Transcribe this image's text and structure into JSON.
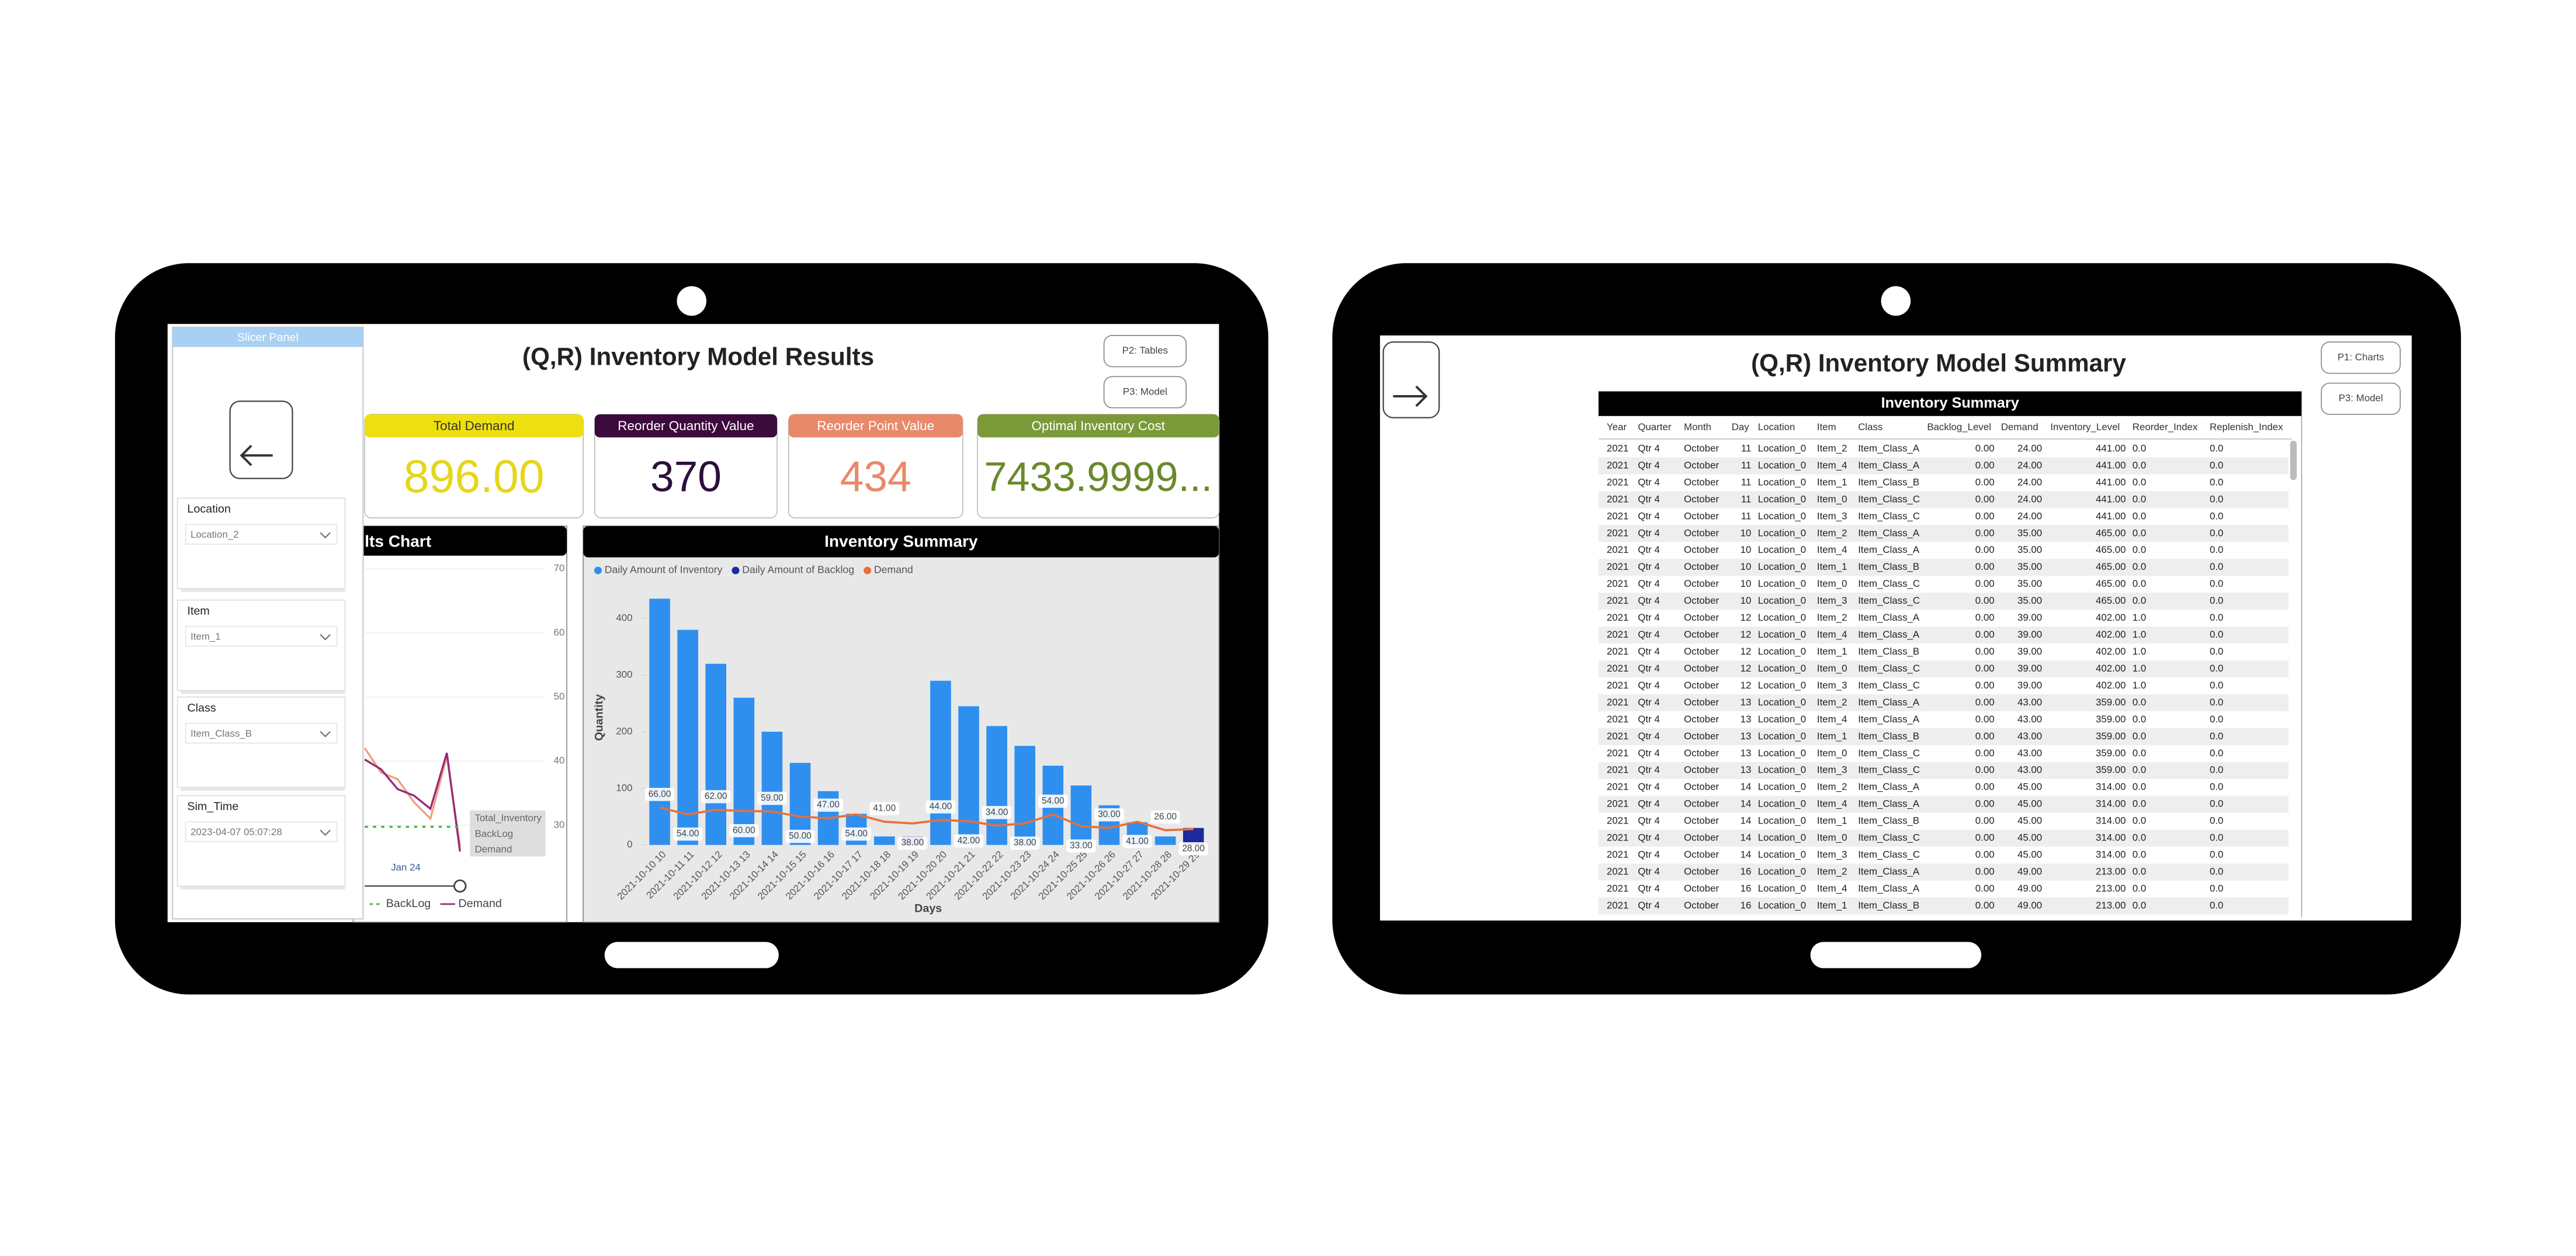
{
  "left_screen": {
    "title": "(Q,R) Inventory Model Results",
    "nav_buttons": [
      "P2: Tables",
      "P3: Model"
    ],
    "slicer_panel": {
      "title": "Slicer Panel",
      "toggle": "Hide Slicers",
      "slicers": [
        {
          "label": "Location",
          "value": "Location_2"
        },
        {
          "label": "Item",
          "value": "Item_1"
        },
        {
          "label": "Class",
          "value": "Item_Class_B"
        },
        {
          "label": "Sim_Time",
          "value": "2023-04-07 05:07:28"
        }
      ]
    },
    "kpis": [
      {
        "label": "Total Demand",
        "value": "896.00"
      },
      {
        "label": "Reorder Quantity Value",
        "value": "370"
      },
      {
        "label": "Reorder Point Value",
        "value": "434"
      },
      {
        "label": "Optimal Inventory Cost",
        "value": "7433.9999..."
      }
    ],
    "results_chart": {
      "title": "lts Chart",
      "yticks": [
        "70",
        "60",
        "50",
        "40",
        "30"
      ],
      "legend": [
        "Total_Inventory",
        "BackLog",
        "Demand"
      ],
      "x_label": "Jan 24",
      "bottom_legend": [
        "BackLog",
        "Demand"
      ]
    }
  },
  "chart_data": {
    "type": "bar",
    "title": "Inventory Summary",
    "x_label": "Days",
    "y_label": "Quantity",
    "categories": [
      "2021-10-10 10",
      "2021-10-11 11",
      "2021-10-12 12",
      "2021-10-13 13",
      "2021-10-14 14",
      "2021-10-15 15",
      "2021-10-16 16",
      "2021-10-17 17",
      "2021-10-18 18",
      "2021-10-19 19",
      "2021-10-20 20",
      "2021-10-21 21",
      "2021-10-22 22",
      "2021-10-23 23",
      "2021-10-24 24",
      "2021-10-25 25",
      "2021-10-26 26",
      "2021-10-27 27",
      "2021-10-28 28",
      "2021-10-29 29"
    ],
    "series": [
      {
        "name": "Daily Amount of Inventory",
        "color": "#2f8fef",
        "values": [
          435,
          380,
          320,
          260,
          200,
          145,
          95,
          55,
          15,
          0,
          290,
          245,
          210,
          175,
          140,
          105,
          70,
          40,
          15,
          0
        ]
      },
      {
        "name": "Daily Amount of Backlog",
        "color": "#1c2a9c",
        "values": [
          0,
          0,
          0,
          0,
          0,
          0,
          0,
          0,
          0,
          15,
          0,
          0,
          0,
          0,
          0,
          0,
          0,
          0,
          0,
          30
        ]
      },
      {
        "name": "Demand",
        "color": "#e8703a",
        "kind": "line",
        "values": [
          66,
          54,
          62,
          60,
          59,
          50,
          47,
          54,
          41,
          38,
          44,
          42,
          34,
          38,
          54,
          33,
          30,
          41,
          26,
          28
        ],
        "value_labels": [
          "66.00",
          "54.00",
          "62.00",
          "60.00",
          "59.00",
          "50.00",
          "47.00",
          "54.00",
          "41.00",
          "38.00",
          "44.00",
          "42.00",
          "34.00",
          "38.00",
          "54.00",
          "33.00",
          "30.00",
          "41.00",
          "26.00",
          "28.00"
        ]
      }
    ],
    "ylim": [
      0,
      450
    ],
    "yticks": [
      0,
      100,
      200,
      300,
      400
    ]
  },
  "right_screen": {
    "toggle": "View Slicers",
    "title": "(Q,R) Inventory Model Summary",
    "nav_buttons": [
      "P1: Charts",
      "P3: Model"
    ],
    "table": {
      "title": "Inventory Summary",
      "columns": [
        "Year",
        "Quarter",
        "Month",
        "Day",
        "Location",
        "Item",
        "Class",
        "Backlog_Level",
        "Demand",
        "Inventory_Level",
        "Reorder_Index",
        "Replenish_Index"
      ],
      "rows": [
        [
          "2021",
          "Qtr 4",
          "October",
          "11",
          "Location_0",
          "Item_2",
          "Item_Class_A",
          "0.00",
          "24.00",
          "441.00",
          "0.0",
          "0.0"
        ],
        [
          "2021",
          "Qtr 4",
          "October",
          "11",
          "Location_0",
          "Item_4",
          "Item_Class_A",
          "0.00",
          "24.00",
          "441.00",
          "0.0",
          "0.0"
        ],
        [
          "2021",
          "Qtr 4",
          "October",
          "11",
          "Location_0",
          "Item_1",
          "Item_Class_B",
          "0.00",
          "24.00",
          "441.00",
          "0.0",
          "0.0"
        ],
        [
          "2021",
          "Qtr 4",
          "October",
          "11",
          "Location_0",
          "Item_0",
          "Item_Class_C",
          "0.00",
          "24.00",
          "441.00",
          "0.0",
          "0.0"
        ],
        [
          "2021",
          "Qtr 4",
          "October",
          "11",
          "Location_0",
          "Item_3",
          "Item_Class_C",
          "0.00",
          "24.00",
          "441.00",
          "0.0",
          "0.0"
        ],
        [
          "2021",
          "Qtr 4",
          "October",
          "10",
          "Location_0",
          "Item_2",
          "Item_Class_A",
          "0.00",
          "35.00",
          "465.00",
          "0.0",
          "0.0"
        ],
        [
          "2021",
          "Qtr 4",
          "October",
          "10",
          "Location_0",
          "Item_4",
          "Item_Class_A",
          "0.00",
          "35.00",
          "465.00",
          "0.0",
          "0.0"
        ],
        [
          "2021",
          "Qtr 4",
          "October",
          "10",
          "Location_0",
          "Item_1",
          "Item_Class_B",
          "0.00",
          "35.00",
          "465.00",
          "0.0",
          "0.0"
        ],
        [
          "2021",
          "Qtr 4",
          "October",
          "10",
          "Location_0",
          "Item_0",
          "Item_Class_C",
          "0.00",
          "35.00",
          "465.00",
          "0.0",
          "0.0"
        ],
        [
          "2021",
          "Qtr 4",
          "October",
          "10",
          "Location_0",
          "Item_3",
          "Item_Class_C",
          "0.00",
          "35.00",
          "465.00",
          "0.0",
          "0.0"
        ],
        [
          "2021",
          "Qtr 4",
          "October",
          "12",
          "Location_0",
          "Item_2",
          "Item_Class_A",
          "0.00",
          "39.00",
          "402.00",
          "1.0",
          "0.0"
        ],
        [
          "2021",
          "Qtr 4",
          "October",
          "12",
          "Location_0",
          "Item_4",
          "Item_Class_A",
          "0.00",
          "39.00",
          "402.00",
          "1.0",
          "0.0"
        ],
        [
          "2021",
          "Qtr 4",
          "October",
          "12",
          "Location_0",
          "Item_1",
          "Item_Class_B",
          "0.00",
          "39.00",
          "402.00",
          "1.0",
          "0.0"
        ],
        [
          "2021",
          "Qtr 4",
          "October",
          "12",
          "Location_0",
          "Item_0",
          "Item_Class_C",
          "0.00",
          "39.00",
          "402.00",
          "1.0",
          "0.0"
        ],
        [
          "2021",
          "Qtr 4",
          "October",
          "12",
          "Location_0",
          "Item_3",
          "Item_Class_C",
          "0.00",
          "39.00",
          "402.00",
          "1.0",
          "0.0"
        ],
        [
          "2021",
          "Qtr 4",
          "October",
          "13",
          "Location_0",
          "Item_2",
          "Item_Class_A",
          "0.00",
          "43.00",
          "359.00",
          "0.0",
          "0.0"
        ],
        [
          "2021",
          "Qtr 4",
          "October",
          "13",
          "Location_0",
          "Item_4",
          "Item_Class_A",
          "0.00",
          "43.00",
          "359.00",
          "0.0",
          "0.0"
        ],
        [
          "2021",
          "Qtr 4",
          "October",
          "13",
          "Location_0",
          "Item_1",
          "Item_Class_B",
          "0.00",
          "43.00",
          "359.00",
          "0.0",
          "0.0"
        ],
        [
          "2021",
          "Qtr 4",
          "October",
          "13",
          "Location_0",
          "Item_0",
          "Item_Class_C",
          "0.00",
          "43.00",
          "359.00",
          "0.0",
          "0.0"
        ],
        [
          "2021",
          "Qtr 4",
          "October",
          "13",
          "Location_0",
          "Item_3",
          "Item_Class_C",
          "0.00",
          "43.00",
          "359.00",
          "0.0",
          "0.0"
        ],
        [
          "2021",
          "Qtr 4",
          "October",
          "14",
          "Location_0",
          "Item_2",
          "Item_Class_A",
          "0.00",
          "45.00",
          "314.00",
          "0.0",
          "0.0"
        ],
        [
          "2021",
          "Qtr 4",
          "October",
          "14",
          "Location_0",
          "Item_4",
          "Item_Class_A",
          "0.00",
          "45.00",
          "314.00",
          "0.0",
          "0.0"
        ],
        [
          "2021",
          "Qtr 4",
          "October",
          "14",
          "Location_0",
          "Item_1",
          "Item_Class_B",
          "0.00",
          "45.00",
          "314.00",
          "0.0",
          "0.0"
        ],
        [
          "2021",
          "Qtr 4",
          "October",
          "14",
          "Location_0",
          "Item_0",
          "Item_Class_C",
          "0.00",
          "45.00",
          "314.00",
          "0.0",
          "0.0"
        ],
        [
          "2021",
          "Qtr 4",
          "October",
          "14",
          "Location_0",
          "Item_3",
          "Item_Class_C",
          "0.00",
          "45.00",
          "314.00",
          "0.0",
          "0.0"
        ],
        [
          "2021",
          "Qtr 4",
          "October",
          "16",
          "Location_0",
          "Item_2",
          "Item_Class_A",
          "0.00",
          "49.00",
          "213.00",
          "0.0",
          "0.0"
        ],
        [
          "2021",
          "Qtr 4",
          "October",
          "16",
          "Location_0",
          "Item_4",
          "Item_Class_A",
          "0.00",
          "49.00",
          "213.00",
          "0.0",
          "0.0"
        ],
        [
          "2021",
          "Qtr 4",
          "October",
          "16",
          "Location_0",
          "Item_1",
          "Item_Class_B",
          "0.00",
          "49.00",
          "213.00",
          "0.0",
          "0.0"
        ]
      ]
    }
  }
}
